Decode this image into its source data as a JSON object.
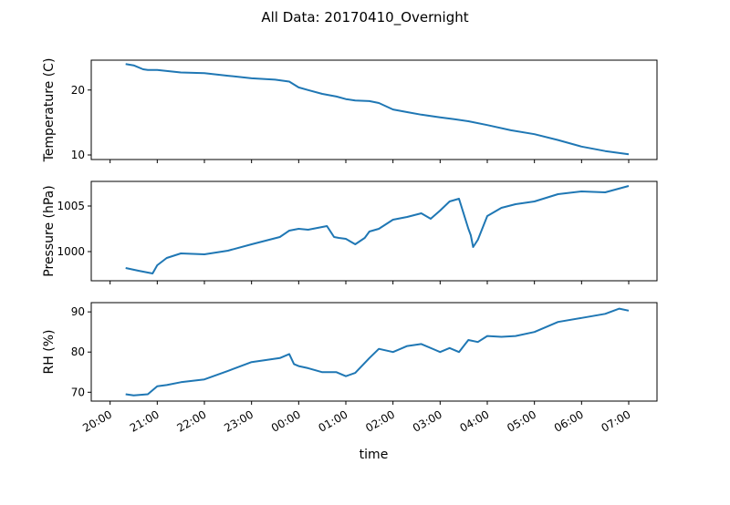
{
  "chart_data": {
    "type": "line",
    "title": "All Data: 20170410_Overnight",
    "xlabel": "time",
    "x_ticks": [
      "20:00",
      "21:00",
      "22:00",
      "23:00",
      "00:00",
      "01:00",
      "02:00",
      "03:00",
      "04:00",
      "05:00",
      "06:00",
      "07:00"
    ],
    "x_range_hours": [
      -0.4,
      11.6
    ],
    "series_color": "#1f77b4",
    "panels": [
      {
        "ylabel": "Temperature (C)",
        "ylim": [
          9.3,
          24.6
        ],
        "yticks": [
          10,
          20
        ],
        "x_hours": [
          0.33,
          0.5,
          0.7,
          0.8,
          1.0,
          1.5,
          2.0,
          2.5,
          3.0,
          3.5,
          3.8,
          4.0,
          4.2,
          4.5,
          4.8,
          5.0,
          5.2,
          5.5,
          5.7,
          6.0,
          6.3,
          6.6,
          7.0,
          7.3,
          7.6,
          8.0,
          8.5,
          9.0,
          9.5,
          10.0,
          10.5,
          11.0
        ],
        "values": [
          24.0,
          23.8,
          23.2,
          23.1,
          23.1,
          22.7,
          22.6,
          22.2,
          21.8,
          21.6,
          21.3,
          20.4,
          20.0,
          19.4,
          19.0,
          18.6,
          18.4,
          18.3,
          18.0,
          17.0,
          16.6,
          16.2,
          15.8,
          15.5,
          15.2,
          14.6,
          13.8,
          13.2,
          12.3,
          11.3,
          10.6,
          10.1
        ]
      },
      {
        "ylabel": "Pressure (hPa)",
        "ylim": [
          996.8,
          1007.7
        ],
        "yticks": [
          1000,
          1005
        ],
        "x_hours": [
          0.33,
          0.6,
          0.9,
          1.0,
          1.2,
          1.5,
          2.0,
          2.5,
          3.0,
          3.3,
          3.6,
          3.8,
          4.0,
          4.2,
          4.4,
          4.6,
          4.75,
          4.85,
          5.0,
          5.2,
          5.4,
          5.5,
          5.7,
          6.0,
          6.3,
          6.6,
          6.8,
          7.0,
          7.2,
          7.4,
          7.6,
          7.65,
          7.7,
          7.8,
          8.0,
          8.3,
          8.6,
          9.0,
          9.5,
          10.0,
          10.5,
          11.0
        ],
        "values": [
          998.2,
          997.9,
          997.6,
          998.5,
          999.3,
          999.8,
          999.7,
          1000.1,
          1000.8,
          1001.2,
          1001.6,
          1002.3,
          1002.5,
          1002.4,
          1002.6,
          1002.8,
          1001.6,
          1001.5,
          1001.4,
          1000.8,
          1001.5,
          1002.2,
          1002.5,
          1003.5,
          1003.8,
          1004.2,
          1003.6,
          1004.5,
          1005.5,
          1005.8,
          1002.5,
          1001.8,
          1000.5,
          1001.3,
          1003.9,
          1004.8,
          1005.2,
          1005.5,
          1006.3,
          1006.6,
          1006.5,
          1007.2
        ]
      },
      {
        "ylabel": "RH (%)",
        "ylim": [
          67.8,
          92.3
        ],
        "yticks": [
          70,
          80,
          90
        ],
        "x_hours": [
          0.33,
          0.5,
          0.8,
          1.0,
          1.2,
          1.5,
          2.0,
          2.5,
          3.0,
          3.3,
          3.6,
          3.8,
          3.9,
          4.0,
          4.2,
          4.5,
          4.8,
          5.0,
          5.2,
          5.5,
          5.7,
          6.0,
          6.3,
          6.6,
          6.9,
          7.0,
          7.2,
          7.4,
          7.6,
          7.8,
          8.0,
          8.3,
          8.6,
          9.0,
          9.5,
          10.0,
          10.5,
          10.8,
          11.0
        ],
        "values": [
          69.5,
          69.2,
          69.5,
          71.5,
          71.8,
          72.5,
          73.2,
          75.3,
          77.5,
          78.0,
          78.5,
          79.5,
          77.0,
          76.5,
          76.0,
          75.0,
          75.0,
          74.0,
          74.8,
          78.5,
          80.8,
          80.0,
          81.5,
          82.0,
          80.5,
          80.0,
          81.0,
          80.0,
          83.0,
          82.5,
          84.0,
          83.8,
          84.0,
          85.0,
          87.5,
          88.5,
          89.5,
          90.8,
          90.3
        ]
      }
    ]
  }
}
